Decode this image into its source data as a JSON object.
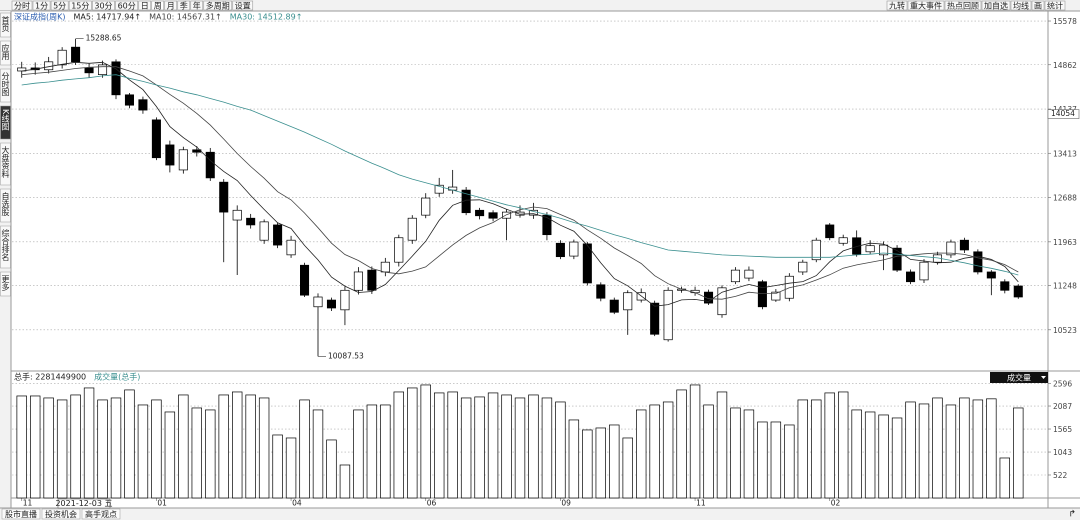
{
  "toolbar": {
    "periods": [
      "分时",
      "1分",
      "5分",
      "15分",
      "30分",
      "60分",
      "日",
      "周",
      "月",
      "季",
      "年",
      "多周期",
      "设置"
    ],
    "tools": [
      "九转",
      "重大事件",
      "热点回顾",
      "加自选",
      "均线",
      "画",
      "统计"
    ]
  },
  "sidebar": [
    "首页",
    "应用",
    "分时图",
    "K线图",
    "大盘资料",
    "自选股",
    "综合排名",
    "更多"
  ],
  "status_bar": [
    "股市直播",
    "投资机会",
    "高手观点"
  ],
  "indicator_menu": "成交量",
  "cursor": {
    "value": 14054,
    "date": "2021-12-03 五"
  },
  "chart_data": [
    {
      "type": "candlestick",
      "title": "深证成指(周K)",
      "categories": [
        "11",
        null,
        null,
        null,
        null,
        null,
        null,
        null,
        null,
        null,
        "01",
        null,
        null,
        null,
        null,
        null,
        null,
        null,
        null,
        null,
        "04",
        null,
        null,
        null,
        null,
        null,
        null,
        null,
        null,
        null,
        "06",
        null,
        null,
        null,
        null,
        null,
        null,
        null,
        null,
        null,
        "09",
        null,
        null,
        null,
        null,
        null,
        null,
        null,
        null,
        null,
        "11",
        null,
        null,
        null,
        null,
        null,
        null,
        null,
        null,
        null,
        "02",
        null,
        null,
        null,
        null,
        null,
        null,
        null,
        null,
        null,
        null,
        null,
        null,
        null,
        null
      ],
      "open": [
        14760,
        14810,
        14780,
        14860,
        15150,
        14810,
        14700,
        14910,
        14370,
        14290,
        13960,
        13550,
        13140,
        13470,
        13430,
        12940,
        12320,
        12350,
        11990,
        12240,
        11750,
        11580,
        10900,
        11010,
        10850,
        11170,
        11500,
        11470,
        11630,
        11990,
        12400,
        12760,
        12810,
        12810,
        12480,
        12440,
        12350,
        12400,
        12400,
        12400,
        11940,
        11730,
        11930,
        11260,
        11010,
        10850,
        11010,
        10960,
        10360,
        11170,
        11130,
        11140,
        10770,
        11310,
        11370,
        11310,
        11010,
        11040,
        11470,
        11670,
        12240,
        11940,
        12030,
        11800,
        11750,
        11860,
        11470,
        11340,
        11630,
        11750,
        11990,
        11800,
        11470,
        11310,
        11240
      ],
      "high": [
        14910,
        14900,
        14990,
        15150,
        15288.65,
        14880,
        14930,
        14950,
        14400,
        14340,
        14000,
        13620,
        13520,
        13530,
        13500,
        12990,
        12560,
        12420,
        12330,
        12280,
        12060,
        11620,
        11120,
        11050,
        11230,
        11550,
        11560,
        11700,
        12080,
        12400,
        12760,
        13010,
        13140,
        12860,
        12520,
        12480,
        12500,
        12560,
        12600,
        12450,
        11990,
        12000,
        11960,
        11300,
        11050,
        11170,
        11200,
        11000,
        11220,
        11230,
        11230,
        11180,
        11250,
        11550,
        11560,
        11340,
        11190,
        11450,
        11670,
        12030,
        12270,
        12080,
        12150,
        11990,
        11970,
        11910,
        11510,
        11680,
        11800,
        12000,
        12030,
        11840,
        11500,
        11350,
        11270
      ],
      "low": [
        14650,
        14700,
        14720,
        14800,
        14860,
        14650,
        14650,
        14300,
        14150,
        14060,
        13300,
        13100,
        13080,
        13360,
        12960,
        11630,
        11420,
        12180,
        11930,
        11860,
        11700,
        11060,
        10087.53,
        10830,
        10600,
        11100,
        11110,
        11400,
        11560,
        11930,
        12350,
        12700,
        12750,
        12400,
        12330,
        12300,
        11990,
        12360,
        12340,
        11990,
        11680,
        11680,
        11250,
        10990,
        10780,
        10440,
        10970,
        10420,
        10330,
        11130,
        11080,
        10930,
        10720,
        11270,
        11320,
        10860,
        10980,
        10990,
        11420,
        11630,
        11990,
        11900,
        11720,
        11760,
        11500,
        11470,
        11270,
        11290,
        11590,
        11700,
        11780,
        11430,
        11090,
        11120,
        11030
      ],
      "close": [
        14810,
        14780,
        14910,
        15100,
        14910,
        14730,
        14860,
        14370,
        14200,
        14120,
        13340,
        13220,
        13470,
        13430,
        13010,
        12450,
        12480,
        12240,
        12290,
        11910,
        11990,
        11090,
        11060,
        10880,
        11170,
        11470,
        11170,
        11630,
        12030,
        12350,
        12680,
        12890,
        12860,
        12440,
        12390,
        12350,
        12450,
        12450,
        12480,
        12080,
        11720,
        11960,
        11290,
        11040,
        10810,
        11130,
        11130,
        10450,
        11170,
        11190,
        11170,
        10960,
        11210,
        11500,
        11500,
        10900,
        11140,
        11400,
        11630,
        11990,
        12030,
        12030,
        11760,
        11900,
        11910,
        11500,
        11310,
        11630,
        11750,
        11960,
        11830,
        11470,
        11370,
        11170,
        11060
      ],
      "up_color": "#ffffff",
      "down_color": "#000000",
      "edge_color": "#000000",
      "lines": [
        {
          "name": "MA5: 14717.94↑",
          "color": "#222222",
          "values": [
            14760,
            14790,
            14830,
            14870,
            14902,
            14886,
            14902,
            14794,
            14614,
            14456,
            14178,
            13850,
            13670,
            13516,
            13294,
            13116,
            12968,
            12722,
            12494,
            12274,
            12182,
            11904,
            11668,
            11386,
            11238,
            11134,
            11150,
            11264,
            11494,
            11730,
            11972,
            12316,
            12562,
            12644,
            12652,
            12586,
            12498,
            12416,
            12424,
            12362,
            12236,
            12138,
            11906,
            11618,
            11362,
            11244,
            11078,
            10910,
            10936,
            11012,
            11020,
            10986,
            11138,
            11204,
            11266,
            11212,
            11248,
            11286,
            11312,
            11410,
            11636,
            11814,
            11886,
            11940,
            11926,
            11820,
            11676,
            11650,
            11620,
            11630,
            11696,
            11728,
            11676,
            11560,
            11308
          ]
        },
        {
          "name": "MA10: 14567.31↑",
          "color": "#444444",
          "values": [
            14700,
            14720,
            14740,
            14770,
            14800,
            14820,
            14830,
            14830,
            14760,
            14679,
            14532,
            14376,
            14232,
            14065,
            13875,
            13647,
            13409,
            13196,
            13005,
            12784,
            12649,
            12436,
            12195,
            11940,
            11756,
            11658,
            11527,
            11466,
            11440,
            11484,
            11553,
            11733,
            11913,
            12069,
            12191,
            12279,
            12407,
            12489,
            12534,
            12507,
            12411,
            12318,
            12161,
            12021,
            11862,
            11740,
            11608,
            11408,
            11277,
            11187,
            11132,
            11032,
            11024,
            11070,
            11139,
            11116,
            11117,
            11212,
            11258,
            11338,
            11424,
            11531,
            11586,
            11626,
            11668,
            11728,
            11745,
            11768,
            11780,
            11778,
            11758,
            11702,
            11663,
            11590,
            11469
          ]
        },
        {
          "name": "MA30: 14512.89↑",
          "color": "#3a8f8f",
          "values": [
            14530,
            14560,
            14580,
            14610,
            14630,
            14650,
            14680,
            14700,
            14640,
            14590,
            14530,
            14480,
            14420,
            14370,
            14310,
            14250,
            14180,
            14120,
            14030,
            13940,
            13850,
            13760,
            13660,
            13560,
            13450,
            13350,
            13250,
            13160,
            13060,
            12990,
            12930,
            12870,
            12810,
            12750,
            12690,
            12630,
            12570,
            12520,
            12460,
            12410,
            12350,
            12280,
            12220,
            12150,
            12080,
            12020,
            11950,
            11890,
            11830,
            11810,
            11790,
            11770,
            11750,
            11740,
            11730,
            11720,
            11710,
            11710,
            11710,
            11710,
            11710,
            11730,
            11750,
            11760,
            11780,
            11760,
            11740,
            11720,
            11700,
            11660,
            11620,
            11570,
            11530,
            11480,
            11420
          ]
        }
      ],
      "ylim": [
        9865,
        15693
      ],
      "yticks": [
        15578,
        14862,
        14137,
        13413,
        12688,
        11963,
        11248,
        10523
      ],
      "grid": true
    },
    {
      "type": "bar",
      "title": "总手: 2281449900",
      "subtitle": "成交量(总手)",
      "values": [
        2315,
        2315,
        2270,
        2225,
        2338,
        2497,
        2225,
        2270,
        2452,
        2111,
        2225,
        1952,
        2338,
        2043,
        1998,
        2338,
        2406,
        2338,
        2270,
        1430,
        1362,
        2225,
        1998,
        1317,
        749,
        1998,
        2111,
        2111,
        2406,
        2497,
        2565,
        2384,
        2406,
        2270,
        2293,
        2384,
        2338,
        2270,
        2338,
        2270,
        2179,
        1771,
        1544,
        1589,
        1657,
        1362,
        1998,
        2111,
        2179,
        2452,
        2565,
        2111,
        2406,
        2043,
        1998,
        1725,
        1725,
        1657,
        2225,
        2225,
        2384,
        2406,
        1998,
        1952,
        1884,
        1816,
        2179,
        2134,
        2270,
        2111,
        2270,
        2225,
        2250,
        908,
        2043
      ],
      "color": "#ffffff",
      "edge_color": "#000000",
      "ylim": [
        0,
        2700
      ],
      "yticks": [
        2596,
        2087,
        1565,
        1043,
        522
      ],
      "grid": true
    }
  ]
}
